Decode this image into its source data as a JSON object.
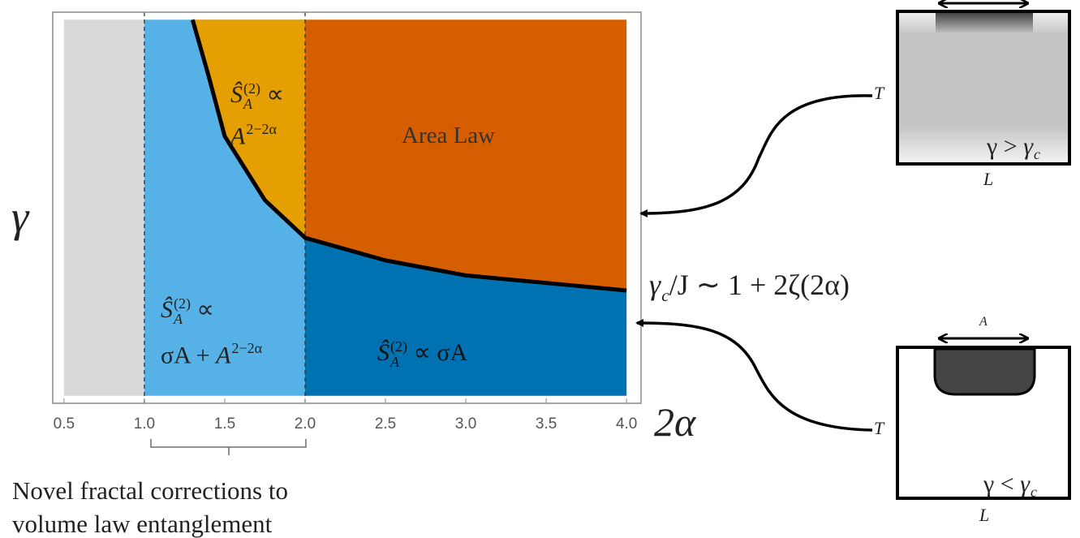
{
  "chart_data": {
    "type": "phase",
    "xlabel": "2α",
    "ylabel": "γ",
    "xlim": [
      0.43,
      4.09
    ],
    "ylim": [
      -0.02,
      1.02
    ],
    "xticks": [
      0.5,
      {
        "value": 1,
        "label": "1.0"
      },
      1.5,
      {
        "value": 2,
        "label": "2.0"
      },
      2.5,
      {
        "value": 3,
        "label": "3.0"
      },
      3.5,
      {
        "value": 4,
        "label": "4.0"
      }
    ],
    "fill_xlim": [
      0.5,
      4
    ],
    "fill_ylim": [
      0,
      1
    ],
    "dashed_x": [
      1,
      2
    ],
    "colors": {
      "excluded": "#d9d9d9",
      "fractal": "#56b1e6",
      "power": "#e69f00",
      "area": "#d55e00",
      "volume": "#0072b2",
      "boundary": "#000000"
    },
    "boundary": {
      "x": [
        1.3,
        1.4,
        1.5,
        1.75,
        2,
        2.5,
        3,
        3.5,
        4
      ],
      "y": [
        1,
        0.85,
        0.69,
        0.52,
        0.42,
        0.36,
        0.32,
        0.3,
        0.28
      ]
    },
    "annotations": {
      "power_1": [
        {
          "base": "Ŝ",
          "sub": "A",
          "sup": "(2)"
        },
        " ∝"
      ],
      "power_2": [
        {
          "base": "A",
          "sup": "2−2α"
        }
      ],
      "area": [
        "Area Law"
      ],
      "fractal_1": [
        {
          "base": "Ŝ",
          "sub": "A",
          "sup": "(2)"
        },
        " ∝"
      ],
      "fractal_2": [
        "σA + ",
        {
          "base": "A",
          "sup": "2−2α"
        }
      ],
      "volume": [
        {
          "base": "Ŝ",
          "sub": "A",
          "sup": "(2)"
        },
        " ∝ σA"
      ],
      "critical": [
        {
          "base": "γ",
          "sub": "c"
        },
        "/J ∼ 1 + 2ζ(2α)"
      ]
    }
  },
  "diagrams": {
    "top": {
      "t": "T",
      "l": "L",
      "condition": [
        "γ > ",
        {
          "base": "γ",
          "sub": "c"
        }
      ]
    },
    "bottom": {
      "t": "T",
      "l": "L",
      "a": "A",
      "condition": [
        "γ < ",
        {
          "base": "γ",
          "sub": "c"
        }
      ]
    }
  },
  "caption": [
    "Novel fractal corrections to",
    "volume law entanglement"
  ]
}
